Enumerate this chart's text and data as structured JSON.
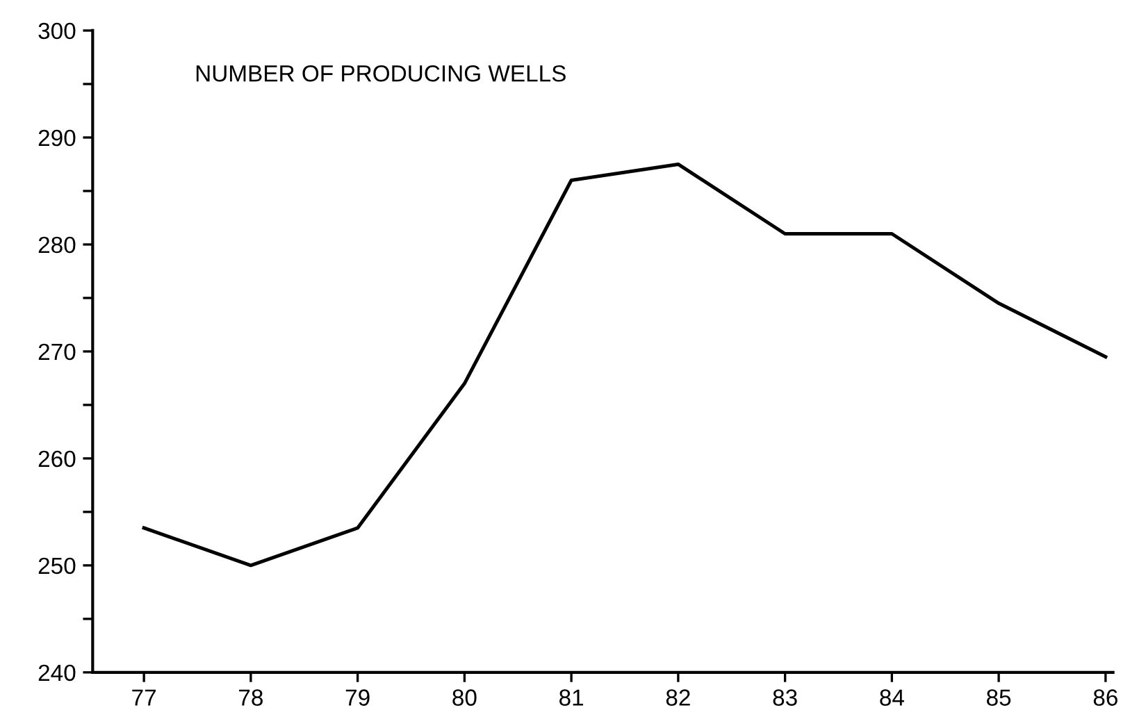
{
  "chart_data": {
    "type": "line",
    "title": "NUMBER OF PRODUCING WELLS",
    "categories": [
      "77",
      "78",
      "79",
      "80",
      "81",
      "82",
      "83",
      "84",
      "85",
      "86"
    ],
    "series": [
      {
        "color": "#000000",
        "values": [
          253.5,
          250,
          253.5,
          267,
          286,
          287.5,
          281,
          281,
          274.5,
          269.5
        ]
      }
    ],
    "ylim": [
      240,
      300
    ],
    "yticks": [
      240,
      {
        "value": 245,
        "label": null
      },
      250,
      {
        "value": 255,
        "label": null
      },
      260,
      {
        "value": 265,
        "label": null
      },
      270,
      {
        "value": 275,
        "label": null
      },
      280,
      {
        "value": 285,
        "label": null
      },
      290,
      {
        "value": 295,
        "label": null
      },
      300
    ],
    "grid": false,
    "legend": false,
    "marker": "none",
    "line_style": "solid"
  }
}
